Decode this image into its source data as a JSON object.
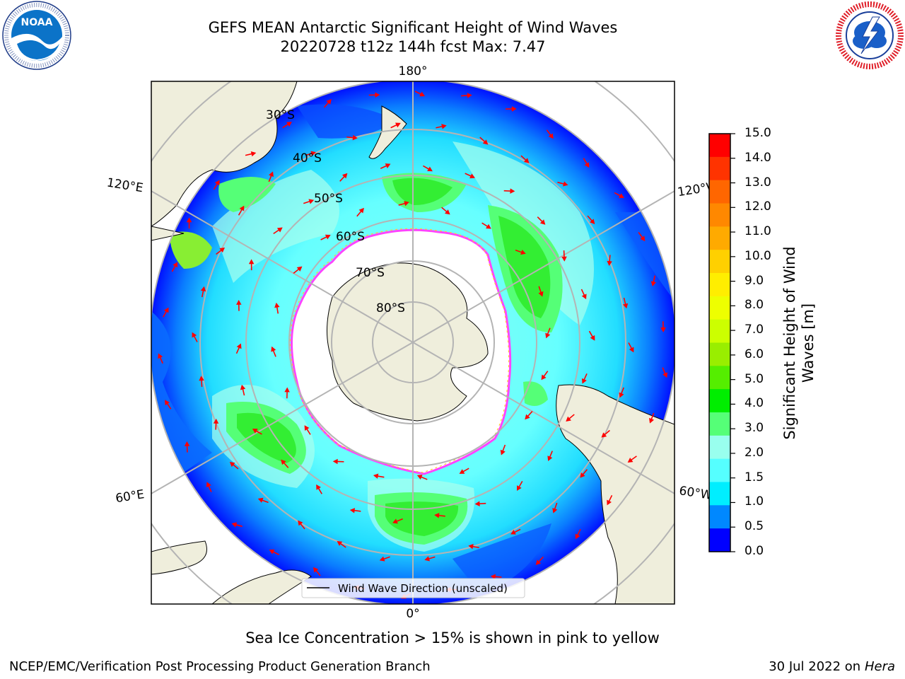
{
  "title_line1": "GEFS MEAN Antarctic Significant Height of Wind Waves",
  "title_line2": "20220728 t12z 144h fcst   Max: 7.47",
  "logos": {
    "left": {
      "icon": "noaa-logo",
      "text": "NOAA",
      "ring_text": "NATIONAL OCEANIC AND ATMOSPHERIC ADMINISTRATION · U.S. DEPARTMENT OF COMMERCE"
    },
    "right": {
      "icon": "nws-logo",
      "ring_text": "NATIONAL WEATHER SERVICE"
    }
  },
  "map": {
    "projection": "south-polar-stereographic",
    "longitude_labels": {
      "top": "180°",
      "bottom": "0°",
      "upper_left": "120°E",
      "upper_right": "120°W",
      "lower_left": "60°E",
      "lower_right": "60°W"
    },
    "latitude_labels": [
      "30°S",
      "40°S",
      "50°S",
      "60°S",
      "70°S",
      "80°S"
    ],
    "legend_label": "Wind Wave Direction (unscaled)",
    "arrow_color": "#ff0000",
    "land_color": "#efeedc",
    "sea_ice_color": "#ffffff",
    "sea_ice_edge_colors": [
      "#ff44ff",
      "#ffcc33"
    ]
  },
  "colorbar": {
    "title": "Significant Height of Wind Waves [m]",
    "ticks": [
      "15.0",
      "14.0",
      "13.0",
      "12.0",
      "11.0",
      "10.0",
      "9.0",
      "8.0",
      "7.0",
      "6.0",
      "5.0",
      "4.0",
      "3.0",
      "2.0",
      "1.5",
      "1.0",
      "0.5",
      "0.0"
    ],
    "colors": [
      "#ff0000",
      "#ff3300",
      "#ff6600",
      "#ff8800",
      "#ffaa00",
      "#ffd000",
      "#ffee00",
      "#eeff00",
      "#ccff00",
      "#99ee00",
      "#55ee00",
      "#00ee00",
      "#55ff77",
      "#99ffee",
      "#55ffff",
      "#00eeff",
      "#0088ff",
      "#0000ff"
    ]
  },
  "note": "Sea Ice Concentration > 15% is shown in pink to yellow",
  "footer_left": "NCEP/EMC/Verification Post Processing Product Generation Branch",
  "footer_right_date": "30 Jul 2022 on ",
  "footer_right_host": "Hera"
}
